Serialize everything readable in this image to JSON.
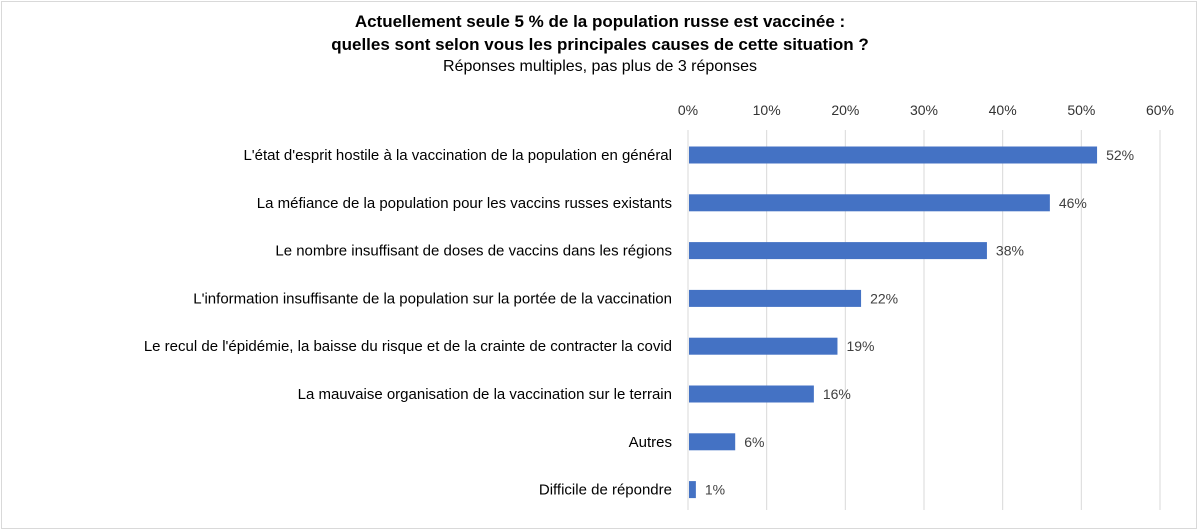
{
  "chart_data": {
    "type": "bar",
    "orientation": "horizontal",
    "title_lines": [
      "Actuellement seule 5 % de la population russe est vaccinée :",
      "quelles sont selon vous les principales causes de cette situation ?"
    ],
    "subtitle": "Réponses multiples, pas plus de 3 réponses",
    "categories": [
      "L'état d'esprit hostile à la vaccination de la population en général",
      "La méfiance de la population pour les vaccins russes existants",
      "Le nombre insuffisant de doses de vaccins dans les régions",
      "L'information insuffisante de la population sur la portée de la vaccination",
      "Le recul de l'épidémie, la baisse du risque et de la crainte de contracter la covid",
      "La mauvaise organisation de la vaccination sur le terrain",
      "Autres",
      "Difficile de répondre"
    ],
    "values": [
      52,
      46,
      38,
      22,
      19,
      16,
      6,
      1
    ],
    "data_labels": [
      "52%",
      "46%",
      "38%",
      "22%",
      "19%",
      "16%",
      "6%",
      "1%"
    ],
    "xlim": [
      0,
      60
    ],
    "ticks": [
      0,
      10,
      20,
      30,
      40,
      50,
      60
    ],
    "tick_labels": [
      "0%",
      "10%",
      "20%",
      "30%",
      "40%",
      "50%",
      "60%"
    ],
    "axis_position": "top",
    "grid": true,
    "bar_color": "#4472C4",
    "grid_color": "#d9d9d9"
  }
}
